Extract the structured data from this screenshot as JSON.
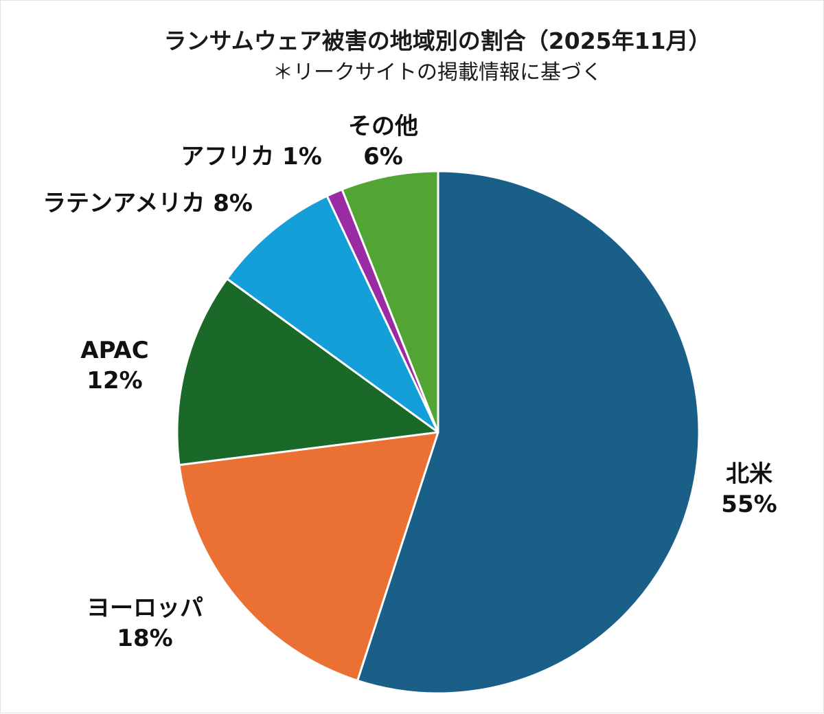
{
  "chart_data": {
    "type": "pie",
    "title": "ランサムウェア被害の地域別の割合（2025年11月）",
    "subtitle": "＊リークサイトの掲載情報に基づく",
    "unit": "%",
    "start_angle_deg": 0,
    "direction": "clockwise",
    "slices": [
      {
        "name": "北米",
        "value": 55,
        "color": "#1a5f87",
        "label_lines": [
          "北米",
          "55%"
        ]
      },
      {
        "name": "ヨーロッパ",
        "value": 18,
        "color": "#eb7033",
        "label_lines": [
          "ヨーロッパ",
          "18%"
        ]
      },
      {
        "name": "APAC",
        "value": 12,
        "color": "#1b6928",
        "label_lines": [
          "APAC",
          "12%"
        ]
      },
      {
        "name": "ラテンアメリカ",
        "value": 8,
        "color": "#149fd9",
        "label_lines": [
          "ラテンアメリカ 8%"
        ]
      },
      {
        "name": "アフリカ",
        "value": 1,
        "color": "#9b2aa5",
        "label_lines": [
          "アフリカ 1%"
        ]
      },
      {
        "name": "その他",
        "value": 6,
        "color": "#52a534",
        "label_lines": [
          "その他",
          "6%"
        ]
      }
    ]
  }
}
